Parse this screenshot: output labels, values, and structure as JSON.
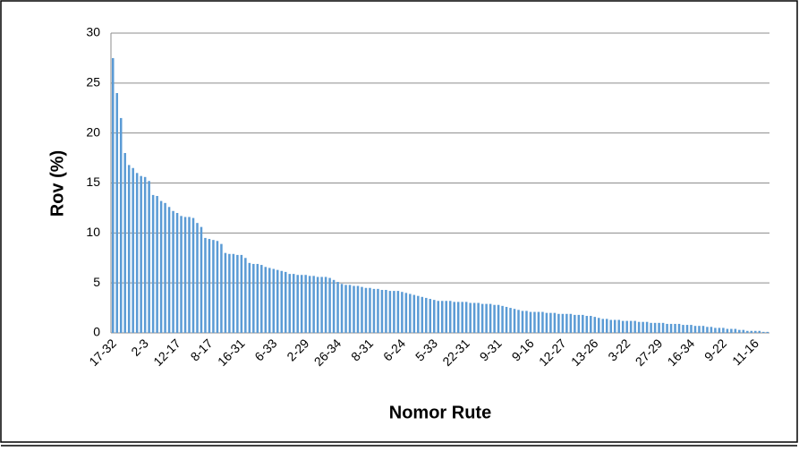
{
  "chart_data": {
    "type": "bar",
    "xlabel": "Nomor Rute",
    "ylabel": "Rov (%)",
    "categories": [
      "17-32",
      null,
      null,
      null,
      null,
      null,
      null,
      null,
      "2-3",
      null,
      null,
      null,
      null,
      null,
      null,
      null,
      "12-17",
      null,
      null,
      null,
      null,
      null,
      null,
      null,
      "8-17",
      null,
      null,
      null,
      null,
      null,
      null,
      null,
      "16-31",
      null,
      null,
      null,
      null,
      null,
      null,
      null,
      "6-33",
      null,
      null,
      null,
      null,
      null,
      null,
      null,
      "2-29",
      null,
      null,
      null,
      null,
      null,
      null,
      null,
      "26-34",
      null,
      null,
      null,
      null,
      null,
      null,
      null,
      "8-31",
      null,
      null,
      null,
      null,
      null,
      null,
      null,
      "6-24",
      null,
      null,
      null,
      null,
      null,
      null,
      null,
      "5-33",
      null,
      null,
      null,
      null,
      null,
      null,
      null,
      "22-31",
      null,
      null,
      null,
      null,
      null,
      null,
      null,
      "9-31",
      null,
      null,
      null,
      null,
      null,
      null,
      null,
      "9-16",
      null,
      null,
      null,
      null,
      null,
      null,
      null,
      "12-27",
      null,
      null,
      null,
      null,
      null,
      null,
      null,
      "13-26",
      null,
      null,
      null,
      null,
      null,
      null,
      null,
      "3-22",
      null,
      null,
      null,
      null,
      null,
      null,
      null,
      "27-29",
      null,
      null,
      null,
      null,
      null,
      null,
      null,
      "16-34",
      null,
      null,
      null,
      null,
      null,
      null,
      null,
      "9-22",
      null,
      null,
      null,
      null,
      null,
      null,
      null,
      "11-16",
      null,
      null,
      null
    ],
    "values": [
      27.5,
      24,
      21.5,
      18,
      16.8,
      16.5,
      16,
      15.7,
      15.6,
      15.2,
      13.8,
      13.7,
      13.2,
      13,
      12.6,
      12.2,
      12,
      11.7,
      11.6,
      11.6,
      11.5,
      11,
      10.6,
      9.5,
      9.4,
      9.3,
      9.2,
      8.9,
      8,
      7.9,
      7.9,
      7.8,
      7.8,
      7.5,
      7,
      6.9,
      6.9,
      6.8,
      6.6,
      6.5,
      6.4,
      6.3,
      6.2,
      6.1,
      5.9,
      5.9,
      5.8,
      5.8,
      5.8,
      5.7,
      5.7,
      5.6,
      5.6,
      5.6,
      5.5,
      5.3,
      5.1,
      4.9,
      4.8,
      4.8,
      4.7,
      4.7,
      4.6,
      4.5,
      4.5,
      4.4,
      4.4,
      4.3,
      4.3,
      4.2,
      4.2,
      4.2,
      4.1,
      4,
      3.9,
      3.8,
      3.7,
      3.6,
      3.5,
      3.4,
      3.3,
      3.2,
      3.2,
      3.2,
      3.2,
      3.1,
      3.1,
      3.1,
      3.1,
      3,
      3,
      3,
      2.9,
      2.9,
      2.9,
      2.8,
      2.8,
      2.7,
      2.6,
      2.5,
      2.4,
      2.3,
      2.2,
      2.2,
      2.1,
      2.1,
      2.1,
      2.1,
      2,
      2,
      2,
      1.9,
      1.9,
      1.9,
      1.9,
      1.8,
      1.8,
      1.8,
      1.7,
      1.7,
      1.6,
      1.5,
      1.4,
      1.4,
      1.3,
      1.3,
      1.3,
      1.2,
      1.2,
      1.2,
      1.2,
      1.1,
      1.1,
      1.1,
      1,
      1,
      1,
      1,
      0.9,
      0.9,
      0.9,
      0.9,
      0.8,
      0.8,
      0.8,
      0.7,
      0.7,
      0.7,
      0.6,
      0.6,
      0.5,
      0.5,
      0.5,
      0.4,
      0.4,
      0.4,
      0.3,
      0.3,
      0.2,
      0.2,
      0.2,
      0.2,
      0.1,
      0.1
    ],
    "color": "#5b9bd5",
    "ylim": [
      0,
      30
    ],
    "yticks": [
      0,
      5,
      10,
      15,
      20,
      25,
      30
    ],
    "grid": true
  }
}
